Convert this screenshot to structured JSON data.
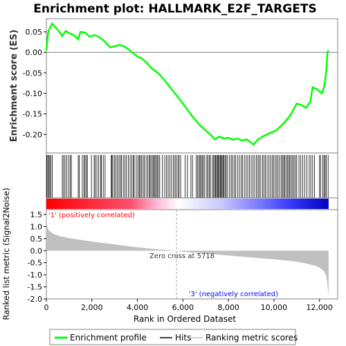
{
  "chart_data": {
    "type": "line",
    "title": "Enrichment plot: HALLMARK_E2F_TARGETS",
    "top_panel": {
      "ylabel": "Enrichment score (ES)",
      "ylim": [
        -0.245,
        0.082
      ],
      "yticks": [
        0.05,
        0.0,
        -0.05,
        -0.1,
        -0.15,
        -0.2
      ],
      "ytick_labels": [
        "0.05",
        "0.00",
        "-0.05",
        "-0.10",
        "-0.15",
        "-0.20"
      ],
      "series": [
        {
          "name": "Enrichment profile",
          "color": "#00ff00",
          "x": [
            0,
            80,
            250,
            500,
            700,
            850,
            1000,
            1200,
            1400,
            1500,
            1700,
            1900,
            2100,
            2300,
            2500,
            2800,
            3000,
            3200,
            3400,
            3600,
            3800,
            4000,
            4200,
            4400,
            4600,
            4900,
            5200,
            5500,
            5800,
            6100,
            6400,
            6700,
            7000,
            7200,
            7400,
            7600,
            7800,
            8000,
            8200,
            8400,
            8600,
            8800,
            9000,
            9100,
            9300,
            9500,
            9700,
            9900,
            10100,
            10300,
            10500,
            10700,
            10900,
            11000,
            11200,
            11400,
            11600,
            11700,
            11900,
            12100,
            12200,
            12300,
            12350,
            12400
          ],
          "y": [
            0.005,
            0.05,
            0.07,
            0.055,
            0.04,
            0.052,
            0.047,
            0.042,
            0.032,
            0.05,
            0.048,
            0.038,
            0.042,
            0.038,
            0.03,
            0.012,
            0.015,
            0.018,
            0.015,
            0.008,
            -0.002,
            -0.01,
            -0.015,
            -0.025,
            -0.038,
            -0.05,
            -0.068,
            -0.09,
            -0.11,
            -0.132,
            -0.155,
            -0.175,
            -0.19,
            -0.2,
            -0.212,
            -0.205,
            -0.21,
            -0.208,
            -0.213,
            -0.21,
            -0.215,
            -0.212,
            -0.22,
            -0.225,
            -0.212,
            -0.205,
            -0.2,
            -0.195,
            -0.19,
            -0.18,
            -0.168,
            -0.155,
            -0.135,
            -0.125,
            -0.128,
            -0.135,
            -0.12,
            -0.085,
            -0.09,
            -0.1,
            -0.085,
            -0.045,
            0.0,
            0.005
          ]
        }
      ]
    },
    "hits_panel": {
      "name": "Hits",
      "hit_positions": [
        20,
        60,
        110,
        150,
        200,
        260,
        700,
        760,
        820,
        900,
        980,
        1050,
        1100,
        1400,
        1450,
        1580,
        1650,
        1700,
        1760,
        1800,
        1980,
        2100,
        2150,
        2220,
        2300,
        2380,
        2420,
        2500,
        2580,
        2850,
        2880,
        2920,
        2990,
        3050,
        3120,
        3190,
        3250,
        3300,
        3380,
        3450,
        3520,
        3600,
        3680,
        3750,
        3820,
        3860,
        3950,
        4020,
        4080,
        4120,
        4180,
        4250,
        4300,
        4380,
        4450,
        4520,
        4560,
        4620,
        4680,
        4720,
        4770,
        4820,
        4870,
        4920,
        4980,
        5100,
        5200,
        5280,
        5350,
        5420,
        5500,
        5580,
        5650,
        5700,
        5780,
        5830,
        5900,
        6100,
        6200,
        6350,
        6420,
        6580,
        6640,
        6700,
        6750,
        6800,
        6850,
        6900,
        6960,
        7050,
        7100,
        7160,
        7210,
        7300,
        7350,
        7400,
        7440,
        7480,
        7520,
        7560,
        7600,
        7640,
        7680,
        7720,
        7760,
        7800,
        7850,
        7900,
        7960,
        8050,
        8120,
        8180,
        8250,
        8320,
        8400,
        8480,
        8560,
        8620,
        8700,
        8780,
        8850,
        8920,
        9000,
        9080,
        9150,
        9230,
        9300,
        9350,
        9420,
        9500,
        9560,
        9620,
        9700,
        9780,
        9850,
        9920,
        9980,
        10050,
        10120,
        10180,
        10250,
        10320,
        10380,
        10430,
        10480,
        10540,
        10600,
        10650,
        10700,
        10760,
        10820,
        10880,
        10940,
        11000,
        11100,
        11180,
        11260,
        11350,
        11450,
        11550,
        11620,
        11700,
        11780,
        12000,
        12050,
        12150,
        12200,
        12250,
        12300,
        12380
      ]
    },
    "metric_panel": {
      "ylabel": "Ranked list metric (Signal2Noise)",
      "ylim": [
        -2.0,
        1.7
      ],
      "yticks": [
        1.5,
        1.0,
        0.5,
        0.0,
        -0.5,
        -1.0,
        -1.5,
        -2.0
      ],
      "ytick_labels": [
        "1.5",
        "1.0",
        "0.5",
        "0.0",
        "-0.5",
        "-1.0",
        "-1.5",
        "-2.0"
      ],
      "series": [
        {
          "name": "Ranking metric scores",
          "color": "#c0c0c0",
          "x": [
            0,
            30,
            100,
            300,
            600,
            1000,
            1500,
            2000,
            2500,
            3000,
            3500,
            4000,
            4500,
            5000,
            5500,
            5718,
            6000,
            6500,
            7000,
            7500,
            8000,
            8500,
            9000,
            9500,
            10000,
            10500,
            11000,
            11500,
            11800,
            12000,
            12200,
            12300,
            12350,
            12400
          ],
          "y": [
            1.6,
            1.0,
            0.85,
            0.7,
            0.6,
            0.52,
            0.45,
            0.38,
            0.32,
            0.26,
            0.2,
            0.14,
            0.09,
            0.05,
            0.02,
            0.0,
            -0.04,
            -0.08,
            -0.12,
            -0.16,
            -0.2,
            -0.24,
            -0.28,
            -0.32,
            -0.36,
            -0.4,
            -0.46,
            -0.55,
            -0.62,
            -0.7,
            -0.85,
            -1.05,
            -1.4,
            -1.9
          ]
        }
      ],
      "annotations": {
        "positive": "'1' (positively correlated)",
        "negative": "'3' (negatively correlated)",
        "zero_cross": "Zero cross at 5718",
        "zero_cross_x": 5718
      }
    },
    "xlabel": "Rank in Ordered Dataset",
    "xlim": [
      0,
      12800
    ],
    "xticks": [
      0,
      2000,
      4000,
      6000,
      8000,
      10000,
      12000
    ],
    "xtick_labels": [
      "0",
      "2,000",
      "4,000",
      "6,000",
      "8,000",
      "10,000",
      "12,000"
    ],
    "n_genes": 12400,
    "legend": {
      "placement": "bottom",
      "items": [
        {
          "label": "Enrichment profile",
          "color": "#00ff00"
        },
        {
          "label": "Hits",
          "color": "#000000"
        },
        {
          "label": "Ranking metric scores",
          "color": "#c0c0c0"
        }
      ]
    }
  }
}
